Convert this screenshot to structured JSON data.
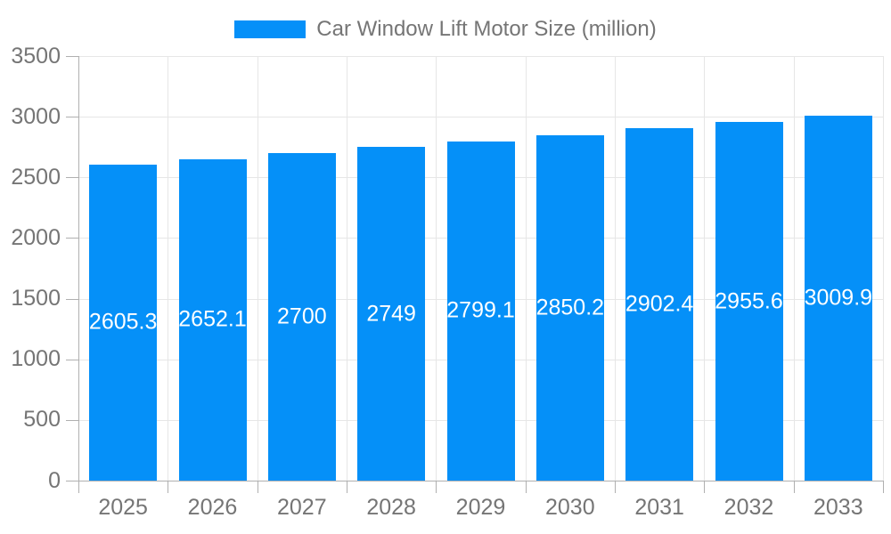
{
  "legend": {
    "label": "Car Window Lift Motor Size (million)"
  },
  "colors": {
    "bar": "#0590F8",
    "grid": "#e6e6e6",
    "axis_line": "#b0b0b0",
    "axis_text": "#757575",
    "value_label": "#ffffff",
    "background": "#ffffff"
  },
  "chart_data": {
    "type": "bar",
    "title": "Car Window Lift Motor Size (million)",
    "categories": [
      "2025",
      "2026",
      "2027",
      "2028",
      "2029",
      "2030",
      "2031",
      "2032",
      "2033"
    ],
    "values": [
      2605.3,
      2652.1,
      2700,
      2749,
      2799.1,
      2850.2,
      2902.4,
      2955.6,
      3009.9
    ],
    "value_labels": [
      "2605.3",
      "2652.1",
      "2700",
      "2749",
      "2799.1",
      "2850.2",
      "2902.4",
      "2955.6",
      "3009.9"
    ],
    "xlabel": "",
    "ylabel": "",
    "ylim": [
      0,
      3500
    ],
    "yticks": [
      0,
      500,
      1000,
      1500,
      2000,
      2500,
      3000,
      3500
    ],
    "grid": true,
    "legend_position": "top-center",
    "value_label_position": "inside-center"
  }
}
